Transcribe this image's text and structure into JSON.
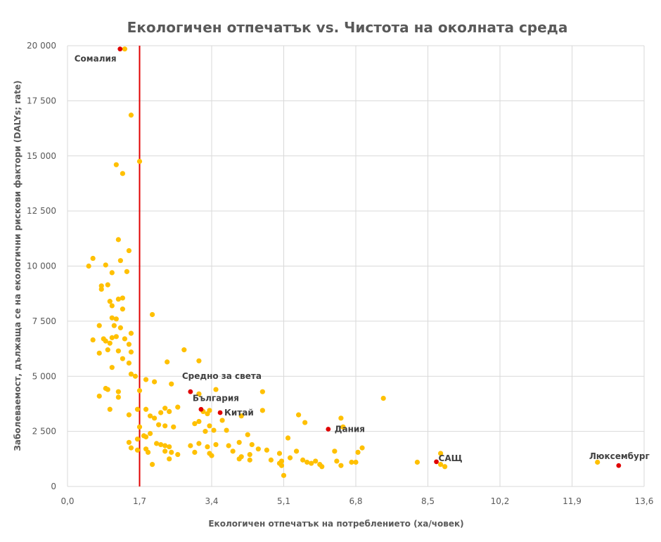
{
  "chart_data": {
    "type": "scatter",
    "title": "Екологичен отпечатък vs. Чистота на околната среда",
    "xlabel": "Екологичен отпечатък на потреблението (ха/човек)",
    "ylabel": "Заболеваемост, дължаща се на екологични рискови фактори (DALYs; rate)",
    "xlim": [
      0,
      13.6
    ],
    "ylim": [
      0,
      20000
    ],
    "x_ticks": [
      "0,0",
      "1,7",
      "3,4",
      "5,1",
      "6,8",
      "8,5",
      "10,2",
      "11,9",
      "13,6"
    ],
    "y_ticks": [
      "0",
      "2 500",
      "5 000",
      "7 500",
      "10 000",
      "12 500",
      "15 000",
      "17 500",
      "20 000"
    ],
    "grid": true,
    "colors": {
      "points": "#FFC000",
      "highlight": "#E00000",
      "reference_line": "#E00000",
      "text": "#595959"
    },
    "reference_line": {
      "orientation": "vertical",
      "x": 1.7
    },
    "highlighted": [
      {
        "label": "Сомалия",
        "x": 1.24,
        "y": 19850
      },
      {
        "label": "Средно за света",
        "x": 2.9,
        "y": 4300
      },
      {
        "label": "България",
        "x": 3.15,
        "y": 3500
      },
      {
        "label": "Китай",
        "x": 3.6,
        "y": 3350
      },
      {
        "label": "Дания",
        "x": 6.15,
        "y": 2600
      },
      {
        "label": "САЩ",
        "x": 8.7,
        "y": 1120
      },
      {
        "label": "Люксембург",
        "x": 13.0,
        "y": 950
      }
    ],
    "points": [
      [
        1.35,
        19850
      ],
      [
        1.5,
        16850
      ],
      [
        1.7,
        14750
      ],
      [
        1.15,
        14600
      ],
      [
        1.3,
        14200
      ],
      [
        1.2,
        11200
      ],
      [
        1.45,
        10700
      ],
      [
        0.6,
        10350
      ],
      [
        0.5,
        10000
      ],
      [
        0.9,
        10050
      ],
      [
        1.25,
        10250
      ],
      [
        1.05,
        9700
      ],
      [
        1.4,
        9750
      ],
      [
        0.8,
        9100
      ],
      [
        0.8,
        8950
      ],
      [
        0.95,
        9150
      ],
      [
        1.2,
        8500
      ],
      [
        1.3,
        8550
      ],
      [
        1.0,
        8400
      ],
      [
        1.05,
        8200
      ],
      [
        1.3,
        8050
      ],
      [
        2.0,
        7800
      ],
      [
        1.05,
        7650
      ],
      [
        1.15,
        7600
      ],
      [
        0.75,
        7300
      ],
      [
        1.1,
        7300
      ],
      [
        1.25,
        7200
      ],
      [
        1.5,
        6950
      ],
      [
        0.6,
        6650
      ],
      [
        0.85,
        6700
      ],
      [
        0.9,
        6600
      ],
      [
        1.05,
        6750
      ],
      [
        1.15,
        6800
      ],
      [
        1.35,
        6700
      ],
      [
        1.0,
        6500
      ],
      [
        1.45,
        6450
      ],
      [
        0.95,
        6200
      ],
      [
        0.75,
        6050
      ],
      [
        1.2,
        6150
      ],
      [
        1.5,
        6100
      ],
      [
        2.75,
        6200
      ],
      [
        1.3,
        5800
      ],
      [
        1.45,
        5600
      ],
      [
        2.35,
        5650
      ],
      [
        3.1,
        5700
      ],
      [
        1.05,
        5400
      ],
      [
        1.5,
        5100
      ],
      [
        1.6,
        5000
      ],
      [
        1.85,
        4850
      ],
      [
        2.05,
        4750
      ],
      [
        2.45,
        4650
      ],
      [
        1.7,
        4350
      ],
      [
        0.9,
        4450
      ],
      [
        0.95,
        4400
      ],
      [
        1.2,
        4300
      ],
      [
        0.75,
        4100
      ],
      [
        1.2,
        4050
      ],
      [
        1.65,
        3500
      ],
      [
        1.85,
        3500
      ],
      [
        2.2,
        3350
      ],
      [
        2.3,
        3550
      ],
      [
        2.6,
        3600
      ],
      [
        2.4,
        3400
      ],
      [
        3.1,
        4200
      ],
      [
        3.5,
        4400
      ],
      [
        4.6,
        4300
      ],
      [
        3.2,
        3400
      ],
      [
        3.35,
        3450
      ],
      [
        4.6,
        3450
      ],
      [
        1.0,
        3500
      ],
      [
        1.45,
        3250
      ],
      [
        1.95,
        3200
      ],
      [
        2.05,
        3100
      ],
      [
        3.3,
        3300
      ],
      [
        4.1,
        3200
      ],
      [
        3.65,
        3000
      ],
      [
        5.45,
        3250
      ],
      [
        6.45,
        3100
      ],
      [
        7.45,
        4000
      ],
      [
        2.15,
        2800
      ],
      [
        2.3,
        2750
      ],
      [
        2.5,
        2700
      ],
      [
        3.0,
        2850
      ],
      [
        3.1,
        2950
      ],
      [
        3.35,
        2750
      ],
      [
        5.6,
        2900
      ],
      [
        6.5,
        2700
      ],
      [
        1.7,
        2700
      ],
      [
        1.95,
        2400
      ],
      [
        1.8,
        2300
      ],
      [
        3.45,
        2550
      ],
      [
        3.25,
        2500
      ],
      [
        3.75,
        2550
      ],
      [
        1.65,
        2150
      ],
      [
        1.85,
        2250
      ],
      [
        4.25,
        2350
      ],
      [
        5.2,
        2200
      ],
      [
        1.45,
        2000
      ],
      [
        1.5,
        1750
      ],
      [
        1.65,
        1650
      ],
      [
        2.1,
        1950
      ],
      [
        2.2,
        1900
      ],
      [
        2.3,
        1850
      ],
      [
        2.4,
        1800
      ],
      [
        2.9,
        1850
      ],
      [
        3.1,
        1950
      ],
      [
        3.3,
        1800
      ],
      [
        3.5,
        1900
      ],
      [
        3.8,
        1850
      ],
      [
        4.05,
        2000
      ],
      [
        4.35,
        1900
      ],
      [
        4.5,
        1700
      ],
      [
        4.7,
        1650
      ],
      [
        5.0,
        1500
      ],
      [
        5.4,
        1600
      ],
      [
        6.3,
        1600
      ],
      [
        6.85,
        1550
      ],
      [
        6.95,
        1750
      ],
      [
        1.85,
        1700
      ],
      [
        1.9,
        1550
      ],
      [
        2.3,
        1600
      ],
      [
        2.45,
        1550
      ],
      [
        2.6,
        1450
      ],
      [
        3.0,
        1550
      ],
      [
        3.35,
        1500
      ],
      [
        3.4,
        1400
      ],
      [
        3.9,
        1600
      ],
      [
        4.1,
        1350
      ],
      [
        4.3,
        1450
      ],
      [
        4.05,
        1250
      ],
      [
        4.3,
        1200
      ],
      [
        4.8,
        1200
      ],
      [
        5.05,
        1150
      ],
      [
        5.25,
        1300
      ],
      [
        5.55,
        1200
      ],
      [
        5.65,
        1100
      ],
      [
        5.75,
        1050
      ],
      [
        5.85,
        1150
      ],
      [
        5.95,
        1000
      ],
      [
        6.0,
        900
      ],
      [
        6.35,
        1150
      ],
      [
        6.45,
        950
      ],
      [
        6.7,
        1100
      ],
      [
        6.8,
        1100
      ],
      [
        2.0,
        1000
      ],
      [
        2.4,
        1250
      ],
      [
        5.05,
        950
      ],
      [
        5.0,
        1050
      ],
      [
        5.1,
        500
      ],
      [
        8.25,
        1100
      ],
      [
        8.8,
        1500
      ],
      [
        8.8,
        1000
      ],
      [
        8.9,
        900
      ],
      [
        12.5,
        1100
      ]
    ]
  }
}
